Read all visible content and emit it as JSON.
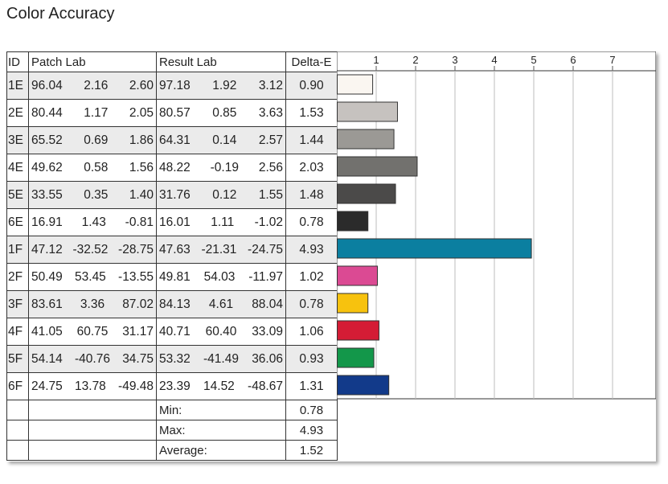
{
  "title": "Color Accuracy",
  "headers": {
    "id": "ID",
    "patch": "Patch Lab",
    "result": "Result Lab",
    "delta": "Delta-E"
  },
  "rows": [
    {
      "id": "1E",
      "patch": [
        "96.04",
        "2.16",
        "2.60"
      ],
      "result": [
        "97.18",
        "1.92",
        "3.12"
      ],
      "delta": "0.90"
    },
    {
      "id": "2E",
      "patch": [
        "80.44",
        "1.17",
        "2.05"
      ],
      "result": [
        "80.57",
        "0.85",
        "3.63"
      ],
      "delta": "1.53"
    },
    {
      "id": "3E",
      "patch": [
        "65.52",
        "0.69",
        "1.86"
      ],
      "result": [
        "64.31",
        "0.14",
        "2.57"
      ],
      "delta": "1.44"
    },
    {
      "id": "4E",
      "patch": [
        "49.62",
        "0.58",
        "1.56"
      ],
      "result": [
        "48.22",
        "-0.19",
        "2.56"
      ],
      "delta": "2.03"
    },
    {
      "id": "5E",
      "patch": [
        "33.55",
        "0.35",
        "1.40"
      ],
      "result": [
        "31.76",
        "0.12",
        "1.55"
      ],
      "delta": "1.48"
    },
    {
      "id": "6E",
      "patch": [
        "16.91",
        "1.43",
        "-0.81"
      ],
      "result": [
        "16.01",
        "1.11",
        "-1.02"
      ],
      "delta": "0.78"
    },
    {
      "id": "1F",
      "patch": [
        "47.12",
        "-32.52",
        "-28.75"
      ],
      "result": [
        "47.63",
        "-21.31",
        "-24.75"
      ],
      "delta": "4.93"
    },
    {
      "id": "2F",
      "patch": [
        "50.49",
        "53.45",
        "-13.55"
      ],
      "result": [
        "49.81",
        "54.03",
        "-11.97"
      ],
      "delta": "1.02"
    },
    {
      "id": "3F",
      "patch": [
        "83.61",
        "3.36",
        "87.02"
      ],
      "result": [
        "84.13",
        "4.61",
        "88.04"
      ],
      "delta": "0.78"
    },
    {
      "id": "4F",
      "patch": [
        "41.05",
        "60.75",
        "31.17"
      ],
      "result": [
        "40.71",
        "60.40",
        "33.09"
      ],
      "delta": "1.06"
    },
    {
      "id": "5F",
      "patch": [
        "54.14",
        "-40.76",
        "34.75"
      ],
      "result": [
        "53.32",
        "-41.49",
        "36.06"
      ],
      "delta": "0.93"
    },
    {
      "id": "6F",
      "patch": [
        "24.75",
        "13.78",
        "-49.48"
      ],
      "result": [
        "23.39",
        "14.52",
        "-48.67"
      ],
      "delta": "1.31"
    }
  ],
  "summary": [
    {
      "label": "Min:",
      "value": "0.78"
    },
    {
      "label": "Max:",
      "value": "4.93"
    },
    {
      "label": "Average:",
      "value": "1.52"
    }
  ],
  "chart_data": {
    "type": "bar",
    "orientation": "horizontal",
    "categories": [
      "1E",
      "2E",
      "3E",
      "4E",
      "5E",
      "6E",
      "1F",
      "2F",
      "3F",
      "4F",
      "5F",
      "6F"
    ],
    "values": [
      0.9,
      1.53,
      1.44,
      2.03,
      1.48,
      0.78,
      4.93,
      1.02,
      0.78,
      1.06,
      0.93,
      1.31
    ],
    "bar_colors": [
      "#faf6f1",
      "#c6c2bf",
      "#9b9995",
      "#72716e",
      "#4b4a49",
      "#2b2b2b",
      "#0b7fa0",
      "#db4a93",
      "#f7c20e",
      "#d41c35",
      "#13974a",
      "#123a8a"
    ],
    "xlim": [
      0,
      8
    ],
    "xticks": [
      "1",
      "2",
      "3",
      "4",
      "5",
      "6",
      "7"
    ],
    "grid": true
  }
}
